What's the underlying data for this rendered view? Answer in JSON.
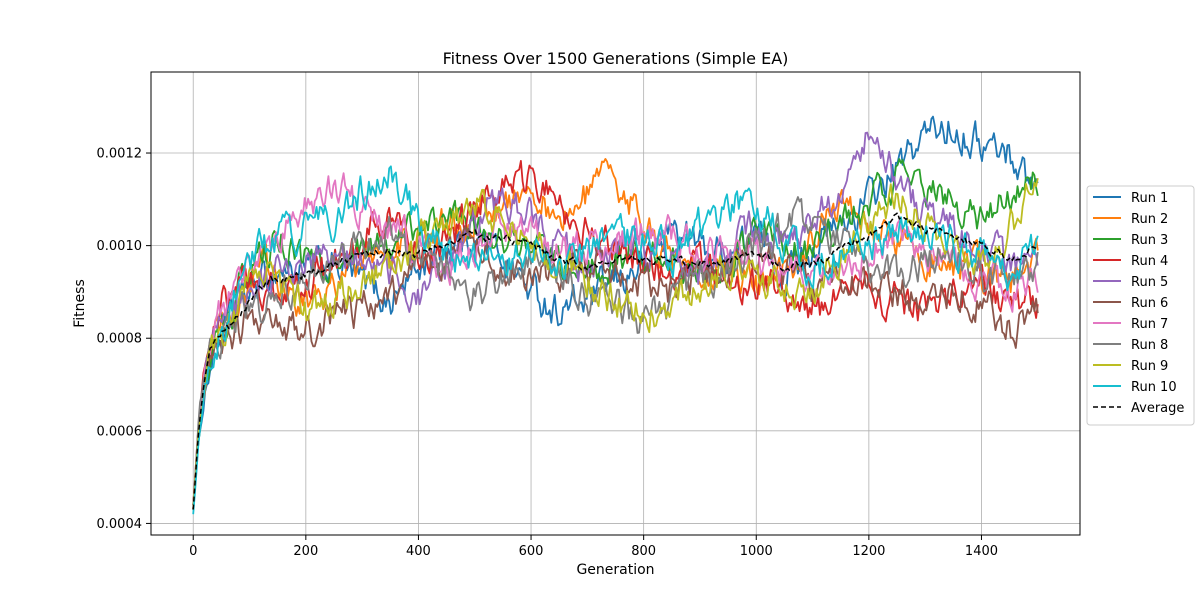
{
  "chart_data": {
    "type": "line",
    "title": "Fitness Over 1500 Generations (Simple EA)",
    "xlabel": "Generation",
    "ylabel": "Fitness",
    "xlim": [
      -75,
      1575
    ],
    "ylim": [
      0.000375,
      0.001375
    ],
    "xticks": [
      0,
      200,
      400,
      600,
      800,
      1000,
      1200,
      1400
    ],
    "xtick_labels": [
      "0",
      "200",
      "400",
      "600",
      "800",
      "1000",
      "1200",
      "1400"
    ],
    "yticks": [
      0.0004,
      0.0006,
      0.0008,
      0.001,
      0.0012
    ],
    "ytick_labels": [
      "0.0004",
      "0.0006",
      "0.0008",
      "0.0010",
      "0.0012"
    ],
    "grid": true,
    "legend_position": "outside right",
    "x": [
      0,
      10,
      20,
      30,
      40,
      60,
      80,
      100,
      130,
      160,
      200,
      250,
      300,
      350,
      400,
      450,
      500,
      550,
      600,
      650,
      700,
      750,
      800,
      850,
      900,
      950,
      1000,
      1050,
      1100,
      1150,
      1200,
      1250,
      1300,
      1350,
      1400,
      1450,
      1500
    ],
    "series": [
      {
        "name": "Run 1",
        "color": "#1f77b4",
        "style": "solid",
        "values": [
          0.00044,
          0.00058,
          0.00068,
          0.00074,
          0.00078,
          0.00083,
          0.00087,
          0.0009,
          0.00093,
          0.00095,
          0.00094,
          0.00096,
          0.00092,
          0.00088,
          0.00095,
          0.001,
          0.00102,
          0.00098,
          0.0009,
          0.00086,
          0.00088,
          0.00092,
          0.00096,
          0.00104,
          0.001,
          0.00098,
          0.00102,
          0.00094,
          0.001,
          0.00104,
          0.0011,
          0.00116,
          0.00124,
          0.00126,
          0.00122,
          0.0012,
          0.00112
        ]
      },
      {
        "name": "Run 2",
        "color": "#ff7f0e",
        "style": "solid",
        "values": [
          0.00043,
          0.0006,
          0.0007,
          0.00076,
          0.0008,
          0.00084,
          0.00088,
          0.00092,
          0.00094,
          0.0009,
          0.00088,
          0.00092,
          0.00095,
          0.00098,
          0.00102,
          0.00104,
          0.00106,
          0.0011,
          0.00112,
          0.00106,
          0.0011,
          0.00116,
          0.00104,
          0.00098,
          0.00094,
          0.00096,
          0.00092,
          0.00094,
          0.001,
          0.0011,
          0.00104,
          0.001,
          0.00098,
          0.00096,
          0.00094,
          0.00092,
          0.00096
        ]
      },
      {
        "name": "Run 3",
        "color": "#2ca02c",
        "style": "solid",
        "values": [
          0.00043,
          0.00059,
          0.00069,
          0.00075,
          0.00079,
          0.00085,
          0.00089,
          0.00094,
          0.00098,
          0.001,
          0.00096,
          0.00094,
          0.00098,
          0.001,
          0.00104,
          0.00108,
          0.00104,
          0.00102,
          0.001,
          0.00096,
          0.00094,
          0.00098,
          0.001,
          0.00096,
          0.00094,
          0.00096,
          0.00104,
          0.00098,
          0.001,
          0.00104,
          0.0011,
          0.00114,
          0.00112,
          0.0011,
          0.00104,
          0.00112,
          0.00114
        ]
      },
      {
        "name": "Run 4",
        "color": "#d62728",
        "style": "solid",
        "values": [
          0.00044,
          0.00062,
          0.00074,
          0.00082,
          0.00086,
          0.00088,
          0.0009,
          0.00092,
          0.0009,
          0.00088,
          0.00092,
          0.00096,
          0.00102,
          0.00106,
          0.00098,
          0.001,
          0.00108,
          0.00112,
          0.00114,
          0.0011,
          0.00104,
          0.001,
          0.00096,
          0.00094,
          0.00096,
          0.00094,
          0.00092,
          0.0009,
          0.00086,
          0.00088,
          0.0009,
          0.00088,
          0.00086,
          0.0009,
          0.00092,
          0.00088,
          0.00086
        ]
      },
      {
        "name": "Run 5",
        "color": "#9467bd",
        "style": "solid",
        "values": [
          0.00043,
          0.00061,
          0.00071,
          0.00077,
          0.0008,
          0.00084,
          0.00088,
          0.0009,
          0.00092,
          0.00094,
          0.00096,
          0.001,
          0.00098,
          0.00094,
          0.0009,
          0.00096,
          0.00104,
          0.0011,
          0.00106,
          0.001,
          0.00096,
          0.00098,
          0.001,
          0.00098,
          0.00096,
          0.001,
          0.00104,
          0.001,
          0.00104,
          0.00112,
          0.00124,
          0.00114,
          0.00108,
          0.00104,
          0.001,
          0.00096,
          0.00098
        ]
      },
      {
        "name": "Run 6",
        "color": "#8c564b",
        "style": "solid",
        "values": [
          0.00044,
          0.0006,
          0.0007,
          0.00076,
          0.00078,
          0.0008,
          0.00082,
          0.00084,
          0.00086,
          0.00084,
          0.00082,
          0.00084,
          0.00086,
          0.0009,
          0.00094,
          0.00098,
          0.001,
          0.00096,
          0.00092,
          0.00094,
          0.00096,
          0.00094,
          0.00092,
          0.0009,
          0.00094,
          0.00096,
          0.00098,
          0.00094,
          0.00092,
          0.00094,
          0.00092,
          0.0009,
          0.00088,
          0.0009,
          0.00088,
          0.00082,
          0.00085
        ]
      },
      {
        "name": "Run 7",
        "color": "#e377c2",
        "style": "solid",
        "values": [
          0.00043,
          0.00062,
          0.00072,
          0.00078,
          0.00082,
          0.00088,
          0.00092,
          0.00096,
          0.001,
          0.00104,
          0.00108,
          0.00114,
          0.00108,
          0.00104,
          0.001,
          0.00096,
          0.001,
          0.00104,
          0.00102,
          0.00098,
          0.001,
          0.00102,
          0.00104,
          0.00102,
          0.00098,
          0.001,
          0.00098,
          0.00094,
          0.00092,
          0.00096,
          0.00098,
          0.00102,
          0.001,
          0.00096,
          0.00092,
          0.0009,
          0.00094
        ]
      },
      {
        "name": "Run 8",
        "color": "#7f7f7f",
        "style": "solid",
        "values": [
          0.00043,
          0.00063,
          0.00073,
          0.00078,
          0.0008,
          0.00082,
          0.00084,
          0.00086,
          0.00088,
          0.0009,
          0.00092,
          0.00096,
          0.001,
          0.00104,
          0.00098,
          0.00094,
          0.0009,
          0.00094,
          0.00096,
          0.00094,
          0.0009,
          0.00086,
          0.00084,
          0.00088,
          0.00092,
          0.00096,
          0.001,
          0.00104,
          0.00106,
          0.001,
          0.00096,
          0.00094,
          0.00096,
          0.00098,
          0.00094,
          0.00092,
          0.00096
        ]
      },
      {
        "name": "Run 9",
        "color": "#bcbd22",
        "style": "solid",
        "values": [
          0.00043,
          0.00061,
          0.00071,
          0.00077,
          0.0008,
          0.00084,
          0.00088,
          0.00092,
          0.00094,
          0.0009,
          0.00086,
          0.00088,
          0.00092,
          0.00096,
          0.001,
          0.00104,
          0.00108,
          0.00106,
          0.001,
          0.00096,
          0.00092,
          0.00088,
          0.00086,
          0.00088,
          0.00092,
          0.00096,
          0.00094,
          0.0009,
          0.00092,
          0.00096,
          0.00104,
          0.0011,
          0.00106,
          0.001,
          0.00096,
          0.00104,
          0.00114
        ]
      },
      {
        "name": "Run 10",
        "color": "#17becf",
        "style": "solid",
        "values": [
          0.00042,
          0.00058,
          0.00068,
          0.00074,
          0.00078,
          0.00084,
          0.0009,
          0.00096,
          0.001,
          0.00102,
          0.00104,
          0.00106,
          0.00112,
          0.00118,
          0.00104,
          0.00098,
          0.00096,
          0.00098,
          0.001,
          0.00096,
          0.00098,
          0.00102,
          0.001,
          0.00098,
          0.00104,
          0.00108,
          0.0011,
          0.001,
          0.00096,
          0.00098,
          0.001,
          0.00104,
          0.00102,
          0.001,
          0.00098,
          0.00094,
          0.001
        ]
      },
      {
        "name": "Average",
        "color": "#000000",
        "style": "dashed",
        "values": [
          0.00043,
          0.00061,
          0.00071,
          0.00077,
          0.0008,
          0.00082,
          0.00085,
          0.00088,
          0.00092,
          0.00093,
          0.00094,
          0.00096,
          0.00098,
          0.00099,
          0.00098,
          0.001,
          0.00102,
          0.00102,
          0.001,
          0.00097,
          0.00096,
          0.00097,
          0.00097,
          0.00097,
          0.00096,
          0.00097,
          0.00098,
          0.00096,
          0.00096,
          0.00099,
          0.00102,
          0.00106,
          0.00104,
          0.00102,
          0.001,
          0.00097,
          0.001
        ]
      }
    ]
  }
}
